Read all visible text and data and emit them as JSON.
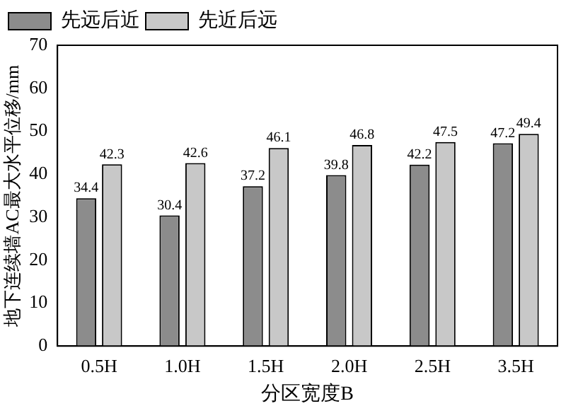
{
  "chart_data": {
    "type": "bar",
    "xlabel": "分区宽度B",
    "ylabel": "地下连续墙AC最大水平位移/mm",
    "categories": [
      "0.5H",
      "1.0H",
      "1.5H",
      "2.0H",
      "2.5H",
      "3.5H"
    ],
    "series": [
      {
        "name": "先远后近",
        "color": "#8c8c8c",
        "values": [
          34.4,
          30.4,
          37.2,
          39.8,
          42.2,
          47.2
        ]
      },
      {
        "name": "先近后远",
        "color": "#c8c8c8",
        "values": [
          42.3,
          42.6,
          46.1,
          46.8,
          47.5,
          49.4
        ]
      }
    ],
    "ylim": [
      0,
      70
    ],
    "yticks": [
      0,
      10,
      20,
      30,
      40,
      50,
      60,
      70
    ],
    "grid": false,
    "legend": "top left",
    "data_labels": true
  }
}
